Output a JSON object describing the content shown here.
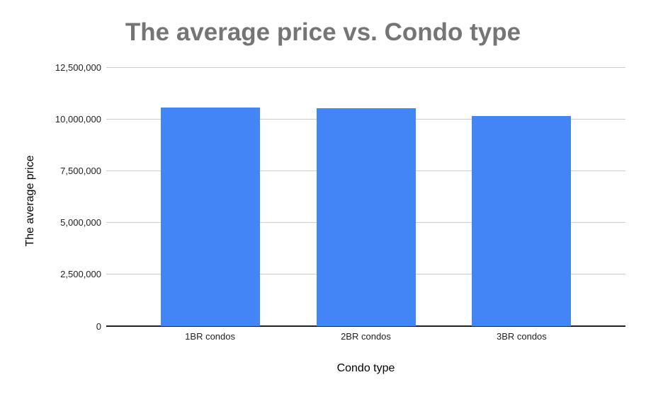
{
  "chart_data": {
    "type": "bar",
    "title": "The average price vs. Condo type",
    "xlabel": "Condo type",
    "ylabel": "The average price",
    "categories": [
      "1BR condos",
      "2BR condos",
      "3BR condos"
    ],
    "values": [
      10550000,
      10520000,
      10140000
    ],
    "ylim": [
      0,
      12500000
    ],
    "ytick_interval": 2500000,
    "ytick_labels": [
      "0",
      "2,500,000",
      "5,000,000",
      "7,500,000",
      "10,000,000",
      "12,500,000"
    ],
    "grid": true,
    "legend": "none",
    "colors": {
      "bar": "#4285f4",
      "title": "#757575",
      "gridline": "#cccccc",
      "axis_line": "#212121",
      "tick_label": "#222222",
      "axis_title": "#000000",
      "background": "#ffffff"
    }
  }
}
